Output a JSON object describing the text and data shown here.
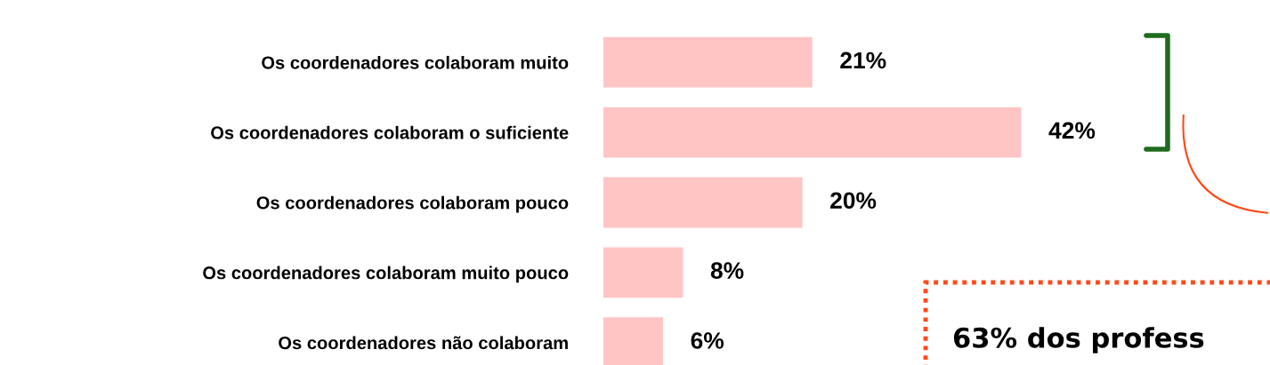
{
  "chart_data": {
    "type": "bar",
    "orientation": "horizontal",
    "categories": [
      "Os coordenadores colaboram muito",
      "Os coordenadores colaboram o suficiente",
      "Os coordenadores colaboram pouco",
      "Os coordenadores colaboram muito pouco",
      "Os coordenadores não colaboram"
    ],
    "values": [
      21,
      42,
      20,
      8,
      6
    ],
    "value_labels": [
      "21%",
      "42%",
      "20%",
      "8%",
      "6%"
    ],
    "color": "#ffc4c4",
    "grid": false,
    "annotations": [
      "63% dos profess"
    ]
  }
}
